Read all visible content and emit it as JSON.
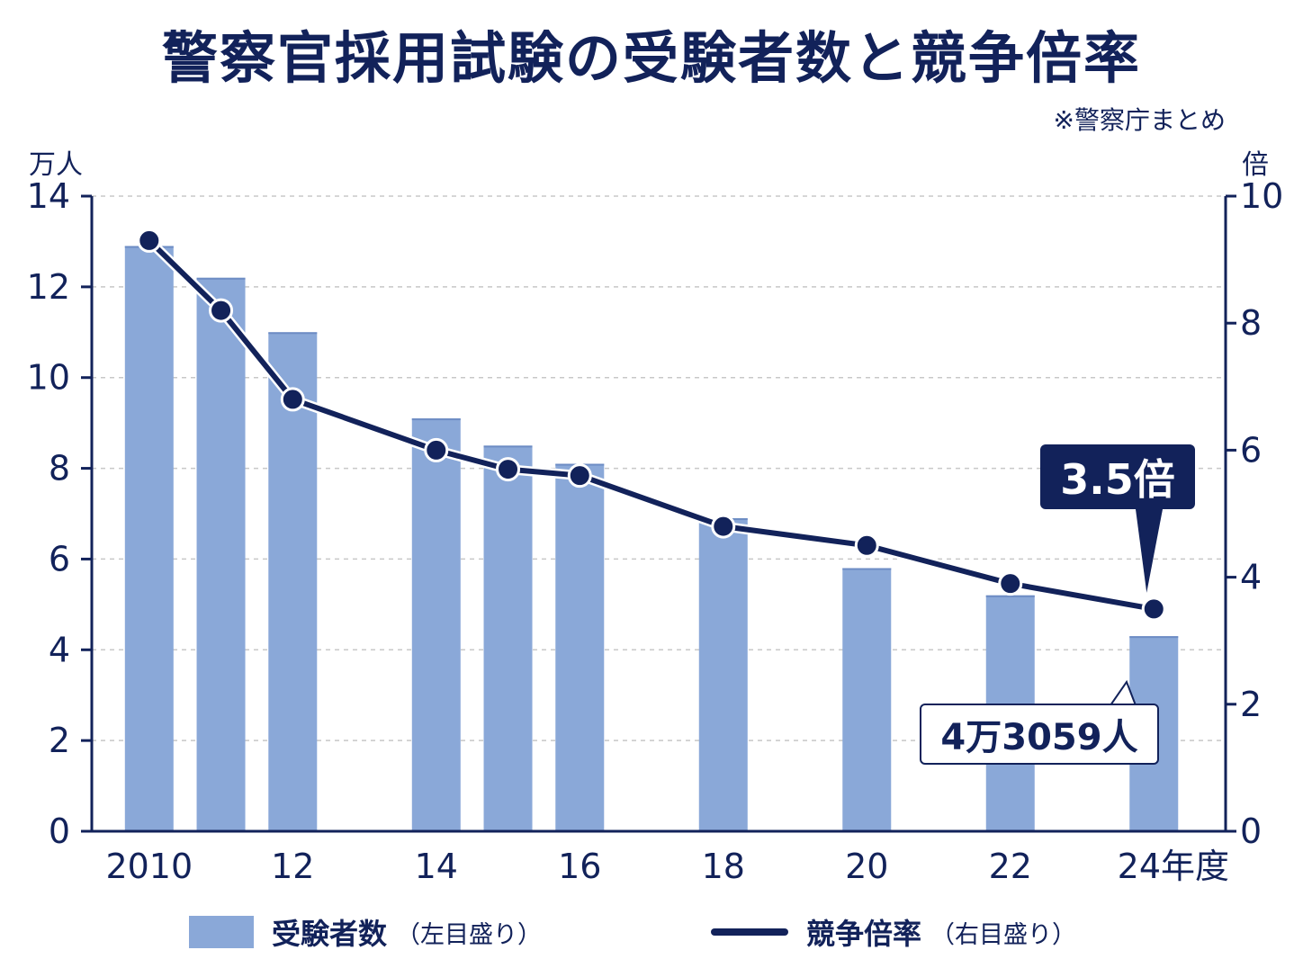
{
  "title": "警察官採用試験の受験者数と競争倍率",
  "source": "※警察庁まとめ",
  "left_unit": "万人",
  "right_unit": "倍",
  "legend": {
    "bar_label": "受験者数",
    "bar_sub": "（左目盛り）",
    "line_label": "競争倍率",
    "line_sub": "（右目盛り）"
  },
  "callouts": {
    "rate_last": "3.5倍",
    "applicants_last": "4万3059人"
  },
  "colors": {
    "bar": "#8aa8d8",
    "line": "#12225a",
    "axis": "#12225a",
    "grid": "#c8c8c8"
  },
  "chart_data": {
    "type": "bar",
    "x": [
      2010,
      2011,
      2012,
      2013,
      2014,
      2015,
      2016,
      2017,
      2018,
      2019,
      2020,
      2021,
      2022,
      2023,
      2024
    ],
    "x_ticks": [
      {
        "value": 2010,
        "label": "2010"
      },
      {
        "value": 2012,
        "label": "12"
      },
      {
        "value": 2014,
        "label": "14"
      },
      {
        "value": 2016,
        "label": "16"
      },
      {
        "value": 2018,
        "label": "18"
      },
      {
        "value": 2020,
        "label": "20"
      },
      {
        "value": 2022,
        "label": "22"
      },
      {
        "value": 2024,
        "label": "24年度"
      }
    ],
    "series": [
      {
        "name": "受験者数",
        "type": "bar",
        "axis": "left",
        "points": [
          {
            "x": 2010,
            "y": 12.9
          },
          {
            "x": 2011,
            "y": 12.2
          },
          {
            "x": 2012,
            "y": 11.0
          },
          {
            "x": 2014,
            "y": 9.1
          },
          {
            "x": 2015,
            "y": 8.5
          },
          {
            "x": 2016,
            "y": 8.1
          },
          {
            "x": 2018,
            "y": 6.9
          },
          {
            "x": 2020,
            "y": 5.8
          },
          {
            "x": 2022,
            "y": 5.2
          },
          {
            "x": 2024,
            "y": 4.3
          }
        ]
      },
      {
        "name": "競争倍率",
        "type": "line",
        "axis": "right",
        "points": [
          {
            "x": 2010,
            "y": 9.3
          },
          {
            "x": 2011,
            "y": 8.2
          },
          {
            "x": 2012,
            "y": 6.8
          },
          {
            "x": 2014,
            "y": 6.0
          },
          {
            "x": 2015,
            "y": 5.7
          },
          {
            "x": 2016,
            "y": 5.6
          },
          {
            "x": 2018,
            "y": 4.8
          },
          {
            "x": 2020,
            "y": 4.5
          },
          {
            "x": 2022,
            "y": 3.9
          },
          {
            "x": 2024,
            "y": 3.5
          }
        ]
      }
    ],
    "y_left": {
      "label": "万人",
      "ylim": [
        0,
        14
      ],
      "ticks": [
        0,
        2,
        4,
        6,
        8,
        10,
        12,
        14
      ]
    },
    "y_right": {
      "label": "倍",
      "ylim": [
        0,
        10
      ],
      "ticks": [
        0,
        2,
        4,
        6,
        8,
        10
      ]
    },
    "grid": true
  }
}
